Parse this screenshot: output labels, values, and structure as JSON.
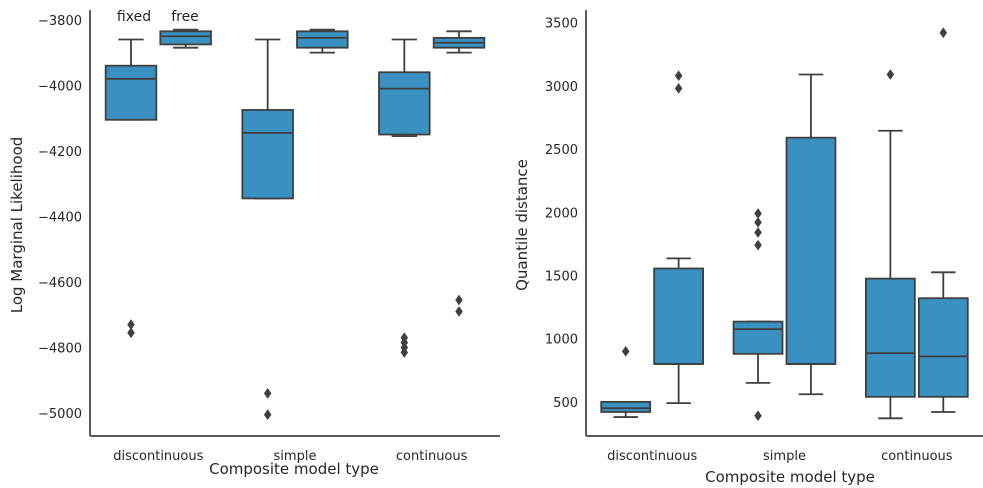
{
  "chart_data": [
    {
      "type": "box",
      "xlabel": "Composite model type",
      "ylabel": "Log Marginal Likelihood",
      "ylim": [
        -5070,
        -3770
      ],
      "yticks": [
        -5000,
        -4800,
        -4600,
        -4400,
        -4200,
        -4000,
        -3800
      ],
      "ytick_labels": [
        "−5000",
        "−4800",
        "−4600",
        "−4400",
        "−4200",
        "−4000",
        "−3800"
      ],
      "categories": [
        "discontinuous",
        "simple",
        "continuous"
      ],
      "hue_labels": [
        "fixed",
        "free"
      ],
      "boxes": [
        {
          "category": "discontinuous",
          "hue": "fixed",
          "whisker_low": -4105,
          "q1": -4105,
          "median": -3980,
          "q3": -3940,
          "whisker_high": -3860,
          "outliers": [
            -4730,
            -4755
          ]
        },
        {
          "category": "discontinuous",
          "hue": "free",
          "whisker_low": -3885,
          "q1": -3875,
          "median": -3850,
          "q3": -3835,
          "whisker_high": -3830,
          "outliers": []
        },
        {
          "category": "simple",
          "hue": "fixed",
          "whisker_low": -4345,
          "q1": -4345,
          "median": -4145,
          "q3": -4075,
          "whisker_high": -3860,
          "outliers": [
            -4940,
            -5005
          ]
        },
        {
          "category": "simple",
          "hue": "free",
          "whisker_low": -3900,
          "q1": -3885,
          "median": -3855,
          "q3": -3835,
          "whisker_high": -3830,
          "outliers": []
        },
        {
          "category": "continuous",
          "hue": "fixed",
          "whisker_low": -4155,
          "q1": -4150,
          "median": -4010,
          "q3": -3960,
          "whisker_high": -3860,
          "outliers": [
            -4770,
            -4785,
            -4800,
            -4815
          ]
        },
        {
          "category": "continuous",
          "hue": "free",
          "whisker_low": -3900,
          "q1": -3885,
          "median": -3870,
          "q3": -3855,
          "whisker_high": -3835,
          "outliers": [
            -4655,
            -4690
          ]
        }
      ],
      "color": "#3a90c0"
    },
    {
      "type": "box",
      "xlabel": "Composite model type",
      "ylabel": "Quantile distance",
      "ylim": [
        230,
        3600
      ],
      "yticks": [
        500,
        1000,
        1500,
        2000,
        2500,
        3000,
        3500
      ],
      "ytick_labels": [
        "500",
        "1000",
        "1500",
        "2000",
        "2500",
        "3000",
        "3500"
      ],
      "categories": [
        "discontinuous",
        "simple",
        "continuous"
      ],
      "boxes": [
        {
          "category": "discontinuous",
          "hue": "fixed",
          "whisker_low": 380,
          "q1": 420,
          "median": 450,
          "q3": 500,
          "whisker_high": 500,
          "outliers": [
            900
          ]
        },
        {
          "category": "discontinuous",
          "hue": "free",
          "whisker_low": 490,
          "q1": 800,
          "median": 800,
          "q3": 1555,
          "whisker_high": 1635,
          "outliers": [
            2980,
            3080
          ]
        },
        {
          "category": "simple",
          "hue": "fixed",
          "whisker_low": 650,
          "q1": 880,
          "median": 1075,
          "q3": 1135,
          "whisker_high": 1135,
          "outliers": [
            390,
            1740,
            1840,
            1920,
            1990
          ]
        },
        {
          "category": "simple",
          "hue": "free",
          "whisker_low": 560,
          "q1": 800,
          "median": 800,
          "q3": 2590,
          "whisker_high": 3090,
          "outliers": []
        },
        {
          "category": "continuous",
          "hue": "fixed",
          "whisker_low": 370,
          "q1": 540,
          "median": 885,
          "q3": 1475,
          "whisker_high": 2645,
          "outliers": [
            3090
          ]
        },
        {
          "category": "continuous",
          "hue": "free",
          "whisker_low": 420,
          "q1": 540,
          "median": 860,
          "q3": 1320,
          "whisker_high": 1525,
          "outliers": [
            3420
          ]
        }
      ],
      "color": "#3a90c0"
    }
  ]
}
